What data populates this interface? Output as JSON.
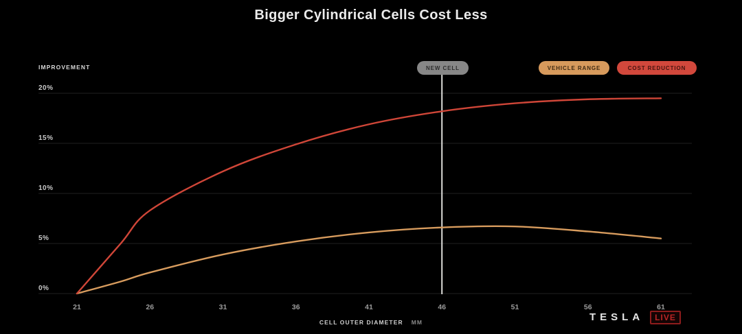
{
  "title": "Bigger Cylindrical Cells Cost Less",
  "y_axis_title": "IMPROVEMENT",
  "x_axis": {
    "title": "CELL OUTER DIAMETER",
    "unit": "MM"
  },
  "marker": {
    "label": "NEW CELL",
    "x": 46
  },
  "legend": [
    {
      "label": "VEHICLE RANGE",
      "bg": "#d79a5c",
      "fg": "#3f2a12"
    },
    {
      "label": "COST REDUCTION",
      "bg": "#d2483c",
      "fg": "#46130e"
    }
  ],
  "branding": {
    "wordmark": "TESLA",
    "badge": "LIVE"
  },
  "chart_data": {
    "type": "line",
    "title": "Bigger Cylindrical Cells Cost Less",
    "xlabel": "CELL OUTER DIAMETER (MM)",
    "ylabel": "IMPROVEMENT (%)",
    "xlim": [
      21,
      61
    ],
    "ylim": [
      0,
      20
    ],
    "x_ticks": [
      21,
      26,
      31,
      36,
      41,
      46,
      51,
      56,
      61
    ],
    "y_ticks": [
      0,
      5,
      10,
      15,
      20
    ],
    "y_tick_suffix": "%",
    "grid": "horizontal-only",
    "grid_color": "#212121",
    "legend_position": "top-right",
    "marker_line": {
      "label": "NEW CELL",
      "x": 46,
      "color": "#dededa"
    },
    "x": [
      21,
      24,
      26,
      31,
      36,
      41,
      46,
      51,
      56,
      61
    ],
    "series": [
      {
        "name": "VEHICLE RANGE",
        "color": "#d89c5e",
        "values": [
          0,
          1.2,
          2.1,
          3.9,
          5.2,
          6.1,
          6.6,
          6.7,
          6.2,
          5.5
        ]
      },
      {
        "name": "COST REDUCTION",
        "color": "#d04638",
        "values": [
          0,
          5.0,
          8.3,
          12.2,
          14.9,
          16.9,
          18.2,
          19.0,
          19.4,
          19.5
        ]
      }
    ]
  }
}
